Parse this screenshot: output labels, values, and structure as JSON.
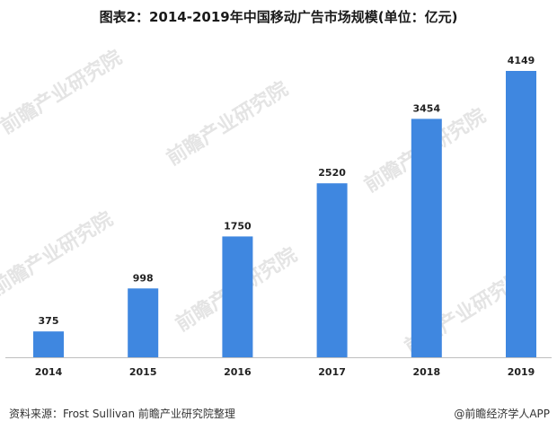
{
  "watermark_text": "前瞻产业研究院",
  "footer": {
    "source": "资料来源：Frost Sullivan 前瞻产业研究院整理",
    "brand": "@前瞻经济学人APP"
  },
  "chart_data": {
    "type": "bar",
    "title": "图表2：2014-2019年中国移动广告市场规模(单位：亿元)",
    "categories": [
      "2014",
      "2015",
      "2016",
      "2017",
      "2018",
      "2019"
    ],
    "values": [
      375,
      998,
      1750,
      2520,
      3454,
      4149
    ],
    "ylim": [
      0,
      4149
    ],
    "grid": false,
    "bar_color": "#3f87e0"
  }
}
